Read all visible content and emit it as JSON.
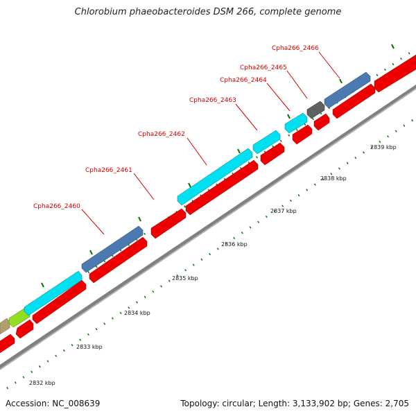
{
  "title": "Chlorobium phaeobacteroides DSM 266, complete genome",
  "accession": "Accession: NC_008639",
  "topology": "Topology: circular; Length: 3,133,902 bp; Genes: 2,705",
  "scale_labels": [
    "2832 kbp",
    "2833 kbp",
    "2834 kbp",
    "2835 kbp",
    "2836 kbp",
    "2837 kbp",
    "2838 kbp",
    "2839 kbp"
  ],
  "gene_labels": [
    "Cpha266_2460",
    "Cpha266_2461",
    "Cpha266_2462",
    "Cpha266_2463",
    "Cpha266_2464",
    "Cpha266_2465",
    "Cpha266_2466"
  ],
  "colors": {
    "forward_gene_blue": "#4a7ab0",
    "cyan_gene": "#00e0f0",
    "grey_gene": "#606060",
    "green_gene": "#90e020",
    "tan_gene": "#b0a070",
    "reverse_gene_red": "#ee0000",
    "backbone": "#808080",
    "tick_green": "#007700",
    "label_red": "#d00000"
  }
}
